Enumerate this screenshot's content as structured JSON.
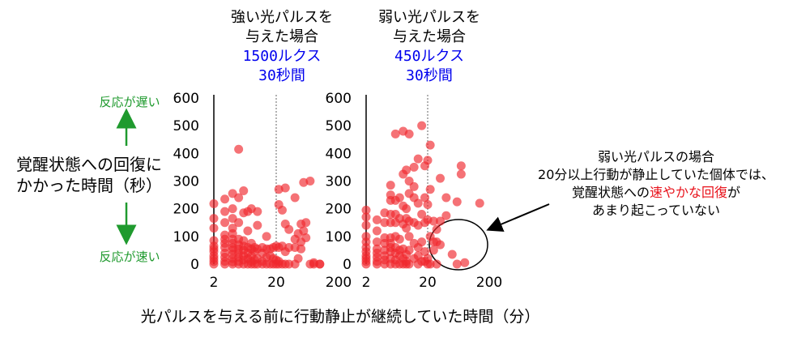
{
  "chart_data": [
    {
      "type": "scatter",
      "title_lines": [
        "強い光パルスを",
        "与えた場合",
        "1500ルクス",
        "30秒間"
      ],
      "x_scale": "log",
      "x_ticks": [
        "2",
        "20",
        "200"
      ],
      "y_ticks": [
        "0",
        "100",
        "200",
        "300",
        "400",
        "500",
        "600"
      ],
      "ylim": [
        0,
        600
      ],
      "xlim_log": [
        2,
        200
      ],
      "marker_color": "#f0272d",
      "threshold_x": 20,
      "points": [
        [
          2,
          0
        ],
        [
          2,
          10
        ],
        [
          2,
          20
        ],
        [
          2,
          30
        ],
        [
          2,
          45
        ],
        [
          2,
          55
        ],
        [
          2,
          65
        ],
        [
          2,
          85
        ],
        [
          2,
          130
        ],
        [
          2,
          165
        ],
        [
          2,
          218
        ],
        [
          3,
          0
        ],
        [
          3,
          10
        ],
        [
          3,
          25
        ],
        [
          3,
          40
        ],
        [
          3,
          60
        ],
        [
          3,
          75
        ],
        [
          3,
          90
        ],
        [
          3,
          105
        ],
        [
          3,
          150
        ],
        [
          3,
          190
        ],
        [
          3,
          235
        ],
        [
          4,
          0
        ],
        [
          4,
          8
        ],
        [
          4,
          20
        ],
        [
          4,
          35
        ],
        [
          4,
          50
        ],
        [
          4,
          60
        ],
        [
          4,
          75
        ],
        [
          4,
          90
        ],
        [
          4,
          110
        ],
        [
          4,
          130
        ],
        [
          4,
          165
        ],
        [
          4,
          200
        ],
        [
          4,
          255
        ],
        [
          5,
          0
        ],
        [
          5,
          10
        ],
        [
          5,
          25
        ],
        [
          5,
          40
        ],
        [
          5,
          55
        ],
        [
          5,
          70
        ],
        [
          5,
          90
        ],
        [
          5,
          150
        ],
        [
          5,
          240
        ],
        [
          5,
          415
        ],
        [
          6,
          0
        ],
        [
          6,
          15
        ],
        [
          6,
          30
        ],
        [
          6,
          50
        ],
        [
          6,
          65
        ],
        [
          6,
          85
        ],
        [
          6,
          185
        ],
        [
          6,
          265
        ],
        [
          7,
          0
        ],
        [
          7,
          20
        ],
        [
          7,
          40
        ],
        [
          7,
          60
        ],
        [
          7,
          120
        ],
        [
          7,
          190
        ],
        [
          8,
          0
        ],
        [
          8,
          10
        ],
        [
          8,
          30
        ],
        [
          8,
          55
        ],
        [
          8,
          75
        ],
        [
          8,
          200
        ],
        [
          9,
          0
        ],
        [
          9,
          15
        ],
        [
          9,
          45
        ],
        [
          9,
          60
        ],
        [
          10,
          0
        ],
        [
          10,
          20
        ],
        [
          10,
          55
        ],
        [
          10,
          140
        ],
        [
          10,
          190
        ],
        [
          12,
          0
        ],
        [
          12,
          10
        ],
        [
          12,
          40
        ],
        [
          12,
          60
        ],
        [
          14,
          0
        ],
        [
          14,
          25
        ],
        [
          14,
          55
        ],
        [
          14,
          100
        ],
        [
          16,
          0
        ],
        [
          16,
          30
        ],
        [
          16,
          55
        ],
        [
          18,
          0
        ],
        [
          18,
          20
        ],
        [
          18,
          60
        ],
        [
          20,
          0
        ],
        [
          20,
          15
        ],
        [
          20,
          65
        ],
        [
          22,
          0
        ],
        [
          22,
          10
        ],
        [
          22,
          270
        ],
        [
          22,
          215
        ],
        [
          22,
          60
        ],
        [
          25,
          0
        ],
        [
          25,
          195
        ],
        [
          25,
          65
        ],
        [
          28,
          0
        ],
        [
          28,
          145
        ],
        [
          28,
          275
        ],
        [
          28,
          45
        ],
        [
          32,
          60
        ],
        [
          32,
          0
        ],
        [
          32,
          125
        ],
        [
          40,
          0
        ],
        [
          40,
          60
        ],
        [
          40,
          90
        ],
        [
          40,
          240
        ],
        [
          45,
          110
        ],
        [
          45,
          20
        ],
        [
          50,
          80
        ],
        [
          50,
          55
        ],
        [
          50,
          145
        ],
        [
          55,
          120
        ],
        [
          55,
          295
        ],
        [
          60,
          95
        ],
        [
          60,
          150
        ],
        [
          70,
          300
        ],
        [
          70,
          0
        ],
        [
          80,
          0
        ],
        [
          80,
          5
        ],
        [
          100,
          0
        ],
        [
          100,
          0
        ]
      ]
    },
    {
      "type": "scatter",
      "title_lines": [
        "弱い光パルスを",
        "与えた場合",
        "450ルクス",
        "30秒間"
      ],
      "x_scale": "log",
      "x_ticks": [
        "2",
        "20",
        "200"
      ],
      "y_ticks": [
        "0",
        "100",
        "200",
        "300",
        "400",
        "500",
        "600"
      ],
      "ylim": [
        0,
        600
      ],
      "xlim_log": [
        2,
        200
      ],
      "marker_color": "#f0272d",
      "threshold_x": 20,
      "points": [
        [
          2,
          0
        ],
        [
          2,
          10
        ],
        [
          2,
          20
        ],
        [
          2,
          30
        ],
        [
          2,
          45
        ],
        [
          2,
          60
        ],
        [
          2,
          80
        ],
        [
          2,
          100
        ],
        [
          2,
          140
        ],
        [
          2,
          170
        ],
        [
          2,
          195
        ],
        [
          3,
          0
        ],
        [
          3,
          10
        ],
        [
          3,
          25
        ],
        [
          3,
          40
        ],
        [
          3,
          55
        ],
        [
          3,
          80
        ],
        [
          3,
          120
        ],
        [
          3,
          160
        ],
        [
          4,
          0
        ],
        [
          4,
          15
        ],
        [
          4,
          30
        ],
        [
          4,
          50
        ],
        [
          4,
          75
        ],
        [
          4,
          95
        ],
        [
          4,
          150
        ],
        [
          4,
          185
        ],
        [
          5,
          0
        ],
        [
          5,
          20
        ],
        [
          5,
          45
        ],
        [
          5,
          60
        ],
        [
          5,
          75
        ],
        [
          5,
          95
        ],
        [
          5,
          150
        ],
        [
          5,
          180
        ],
        [
          5,
          230
        ],
        [
          5,
          250
        ],
        [
          5,
          285
        ],
        [
          6,
          0
        ],
        [
          6,
          15
        ],
        [
          6,
          40
        ],
        [
          6,
          60
        ],
        [
          6,
          100
        ],
        [
          6,
          150
        ],
        [
          6,
          180
        ],
        [
          6,
          230
        ],
        [
          6,
          470
        ],
        [
          7,
          0
        ],
        [
          7,
          30
        ],
        [
          7,
          50
        ],
        [
          7,
          90
        ],
        [
          7,
          165
        ],
        [
          7,
          240
        ],
        [
          8,
          0
        ],
        [
          8,
          20
        ],
        [
          8,
          55
        ],
        [
          8,
          145
        ],
        [
          8,
          210
        ],
        [
          8,
          325
        ],
        [
          8,
          480
        ],
        [
          9,
          0
        ],
        [
          9,
          10
        ],
        [
          9,
          35
        ],
        [
          9,
          130
        ],
        [
          9,
          165
        ],
        [
          9,
          200
        ],
        [
          9,
          340
        ],
        [
          10,
          0
        ],
        [
          10,
          50
        ],
        [
          10,
          100
        ],
        [
          10,
          155
        ],
        [
          10,
          255
        ],
        [
          10,
          300
        ],
        [
          10,
          470
        ],
        [
          12,
          20
        ],
        [
          12,
          75
        ],
        [
          12,
          150
        ],
        [
          12,
          240
        ],
        [
          12,
          280
        ],
        [
          12,
          350
        ],
        [
          14,
          0
        ],
        [
          14,
          30
        ],
        [
          14,
          60
        ],
        [
          14,
          140
        ],
        [
          14,
          220
        ],
        [
          14,
          380
        ],
        [
          16,
          10
        ],
        [
          16,
          80
        ],
        [
          16,
          180
        ],
        [
          16,
          500
        ],
        [
          18,
          10
        ],
        [
          18,
          45
        ],
        [
          18,
          150
        ],
        [
          18,
          240
        ],
        [
          18,
          355
        ],
        [
          20,
          0
        ],
        [
          20,
          20
        ],
        [
          20,
          160
        ],
        [
          20,
          215
        ],
        [
          20,
          375
        ],
        [
          22,
          0
        ],
        [
          22,
          100
        ],
        [
          22,
          270
        ],
        [
          22,
          430
        ],
        [
          25,
          80
        ],
        [
          25,
          50
        ],
        [
          25,
          155
        ],
        [
          28,
          80
        ],
        [
          28,
          0
        ],
        [
          28,
          125
        ],
        [
          32,
          310
        ],
        [
          32,
          70
        ],
        [
          32,
          155
        ],
        [
          40,
          175
        ],
        [
          40,
          240
        ],
        [
          50,
          35
        ],
        [
          60,
          225
        ],
        [
          60,
          0
        ],
        [
          70,
          355
        ],
        [
          70,
          325
        ],
        [
          80,
          5
        ],
        [
          140,
          220
        ]
      ]
    }
  ],
  "y_axis_label": {
    "top_note": "反応が遅い",
    "line1": "覚醒状態への回復に",
    "line2": "かかった時間（秒）",
    "bottom_note": "反応が速い"
  },
  "x_axis_label": "光パルスを与える前に行動静止が継続していた時間（分）",
  "annotation": {
    "line1": "弱い光パルスの場合",
    "line2": "20分以上行動が静止していた個体では、",
    "line3_before": "覚醒状態への",
    "line3_red1": "速やかな",
    "line3_red2": "回復",
    "line3_after": "が",
    "line4": "あまり起こっていない"
  },
  "colors": {
    "marker": "#f0272d",
    "arrow_green": "#1f9a2e",
    "highlight_red": "#e8111a",
    "subtitle_blue": "#0000ee"
  }
}
